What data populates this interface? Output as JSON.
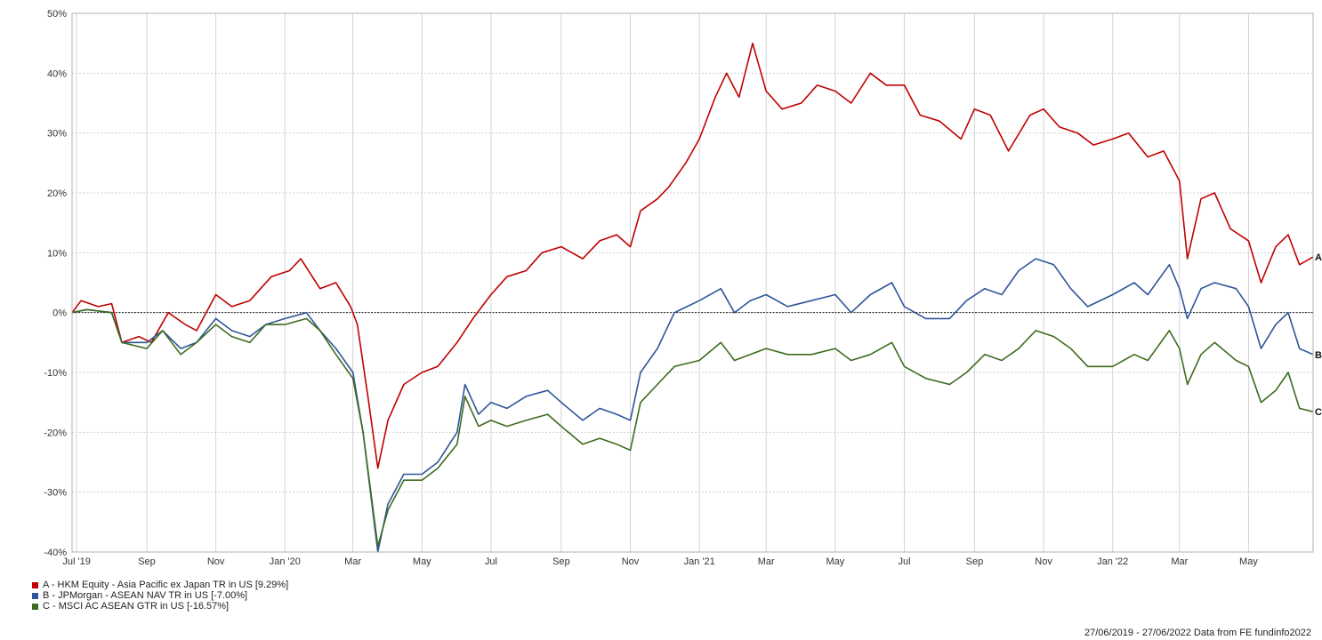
{
  "chart_data": {
    "type": "line",
    "title": "",
    "xlabel": "",
    "ylabel": "",
    "ylim": [
      -40,
      50
    ],
    "y_ticks": [
      -40,
      -30,
      -20,
      -10,
      0,
      10,
      20,
      30,
      40,
      50
    ],
    "y_tick_labels": [
      "-40%",
      "-30%",
      "-20%",
      "-10%",
      "0%",
      "10%",
      "20%",
      "30%",
      "40%",
      "50%"
    ],
    "x_range": [
      "2019-06-27",
      "2022-06-27"
    ],
    "x_ticks": [
      {
        "date": "2019-07-01",
        "label": "Jul '19"
      },
      {
        "date": "2019-09-01",
        "label": "Sep"
      },
      {
        "date": "2019-11-01",
        "label": "Nov"
      },
      {
        "date": "2020-01-01",
        "label": "Jan '20"
      },
      {
        "date": "2020-03-01",
        "label": "Mar"
      },
      {
        "date": "2020-05-01",
        "label": "May"
      },
      {
        "date": "2020-07-01",
        "label": "Jul"
      },
      {
        "date": "2020-09-01",
        "label": "Sep"
      },
      {
        "date": "2020-11-01",
        "label": "Nov"
      },
      {
        "date": "2021-01-01",
        "label": "Jan '21"
      },
      {
        "date": "2021-03-01",
        "label": "Mar"
      },
      {
        "date": "2021-05-01",
        "label": "May"
      },
      {
        "date": "2021-07-01",
        "label": "Jul"
      },
      {
        "date": "2021-09-01",
        "label": "Sep"
      },
      {
        "date": "2021-11-01",
        "label": "Nov"
      },
      {
        "date": "2022-01-01",
        "label": "Jan '22"
      },
      {
        "date": "2022-03-01",
        "label": "Mar"
      },
      {
        "date": "2022-05-01",
        "label": "May"
      }
    ],
    "grid": true,
    "zero_line": true,
    "legend_position": "bottom-left",
    "series": [
      {
        "name": "A - HKM Equity - Asia Pacific ex Japan TR in US [9.29%]",
        "end_label": "A",
        "color": "#c00000",
        "points": [
          [
            "2019-06-27",
            0
          ],
          [
            "2019-07-05",
            2
          ],
          [
            "2019-07-20",
            1
          ],
          [
            "2019-08-01",
            1.5
          ],
          [
            "2019-08-10",
            -5
          ],
          [
            "2019-08-25",
            -4
          ],
          [
            "2019-09-05",
            -5
          ],
          [
            "2019-09-20",
            0
          ],
          [
            "2019-10-05",
            -2
          ],
          [
            "2019-10-15",
            -3
          ],
          [
            "2019-11-01",
            3
          ],
          [
            "2019-11-15",
            1
          ],
          [
            "2019-12-01",
            2
          ],
          [
            "2019-12-20",
            6
          ],
          [
            "2020-01-05",
            7
          ],
          [
            "2020-01-15",
            9
          ],
          [
            "2020-02-01",
            4
          ],
          [
            "2020-02-15",
            5
          ],
          [
            "2020-02-28",
            1
          ],
          [
            "2020-03-05",
            -2
          ],
          [
            "2020-03-15",
            -15
          ],
          [
            "2020-03-23",
            -26
          ],
          [
            "2020-04-01",
            -18
          ],
          [
            "2020-04-15",
            -12
          ],
          [
            "2020-05-01",
            -10
          ],
          [
            "2020-05-15",
            -9
          ],
          [
            "2020-06-01",
            -5
          ],
          [
            "2020-06-15",
            -1
          ],
          [
            "2020-07-01",
            3
          ],
          [
            "2020-07-15",
            6
          ],
          [
            "2020-08-01",
            7
          ],
          [
            "2020-08-15",
            10
          ],
          [
            "2020-09-01",
            11
          ],
          [
            "2020-09-20",
            9
          ],
          [
            "2020-10-05",
            12
          ],
          [
            "2020-10-20",
            13
          ],
          [
            "2020-11-01",
            11
          ],
          [
            "2020-11-10",
            17
          ],
          [
            "2020-11-25",
            19
          ],
          [
            "2020-12-05",
            21
          ],
          [
            "2020-12-20",
            25
          ],
          [
            "2021-01-01",
            29
          ],
          [
            "2021-01-15",
            36
          ],
          [
            "2021-01-25",
            40
          ],
          [
            "2021-02-05",
            36
          ],
          [
            "2021-02-17",
            45
          ],
          [
            "2021-03-01",
            37
          ],
          [
            "2021-03-15",
            34
          ],
          [
            "2021-04-01",
            35
          ],
          [
            "2021-04-15",
            38
          ],
          [
            "2021-05-01",
            37
          ],
          [
            "2021-05-15",
            35
          ],
          [
            "2021-06-01",
            40
          ],
          [
            "2021-06-15",
            38
          ],
          [
            "2021-07-01",
            38
          ],
          [
            "2021-07-15",
            33
          ],
          [
            "2021-08-01",
            32
          ],
          [
            "2021-08-20",
            29
          ],
          [
            "2021-09-01",
            34
          ],
          [
            "2021-09-15",
            33
          ],
          [
            "2021-10-01",
            27
          ],
          [
            "2021-10-20",
            33
          ],
          [
            "2021-11-01",
            34
          ],
          [
            "2021-11-15",
            31
          ],
          [
            "2021-12-01",
            30
          ],
          [
            "2021-12-15",
            28
          ],
          [
            "2022-01-01",
            29
          ],
          [
            "2022-01-15",
            30
          ],
          [
            "2022-02-01",
            26
          ],
          [
            "2022-02-15",
            27
          ],
          [
            "2022-03-01",
            22
          ],
          [
            "2022-03-08",
            9
          ],
          [
            "2022-03-20",
            19
          ],
          [
            "2022-04-01",
            20
          ],
          [
            "2022-04-15",
            14
          ],
          [
            "2022-05-01",
            12
          ],
          [
            "2022-05-12",
            5
          ],
          [
            "2022-05-25",
            11
          ],
          [
            "2022-06-05",
            13
          ],
          [
            "2022-06-15",
            8
          ],
          [
            "2022-06-27",
            9.29
          ]
        ]
      },
      {
        "name": "B - JPMorgan - ASEAN NAV TR in US [-7.00%]",
        "end_label": "B",
        "color": "#2e5598",
        "points": [
          [
            "2019-06-27",
            0
          ],
          [
            "2019-07-10",
            0.5
          ],
          [
            "2019-08-01",
            0
          ],
          [
            "2019-08-10",
            -5
          ],
          [
            "2019-09-01",
            -5
          ],
          [
            "2019-09-15",
            -3
          ],
          [
            "2019-10-01",
            -6
          ],
          [
            "2019-10-15",
            -5
          ],
          [
            "2019-11-01",
            -1
          ],
          [
            "2019-11-15",
            -3
          ],
          [
            "2019-12-01",
            -4
          ],
          [
            "2019-12-15",
            -2
          ],
          [
            "2020-01-01",
            -1
          ],
          [
            "2020-01-20",
            0
          ],
          [
            "2020-02-01",
            -3
          ],
          [
            "2020-02-15",
            -6
          ],
          [
            "2020-03-01",
            -10
          ],
          [
            "2020-03-10",
            -20
          ],
          [
            "2020-03-23",
            -40
          ],
          [
            "2020-04-01",
            -32
          ],
          [
            "2020-04-15",
            -27
          ],
          [
            "2020-05-01",
            -27
          ],
          [
            "2020-05-15",
            -25
          ],
          [
            "2020-06-01",
            -20
          ],
          [
            "2020-06-08",
            -12
          ],
          [
            "2020-06-20",
            -17
          ],
          [
            "2020-07-01",
            -15
          ],
          [
            "2020-07-15",
            -16
          ],
          [
            "2020-08-01",
            -14
          ],
          [
            "2020-08-20",
            -13
          ],
          [
            "2020-09-01",
            -15
          ],
          [
            "2020-09-20",
            -18
          ],
          [
            "2020-10-05",
            -16
          ],
          [
            "2020-10-20",
            -17
          ],
          [
            "2020-11-01",
            -18
          ],
          [
            "2020-11-10",
            -10
          ],
          [
            "2020-11-25",
            -6
          ],
          [
            "2020-12-10",
            0
          ],
          [
            "2021-01-01",
            2
          ],
          [
            "2021-01-20",
            4
          ],
          [
            "2021-02-01",
            0
          ],
          [
            "2021-02-15",
            2
          ],
          [
            "2021-03-01",
            3
          ],
          [
            "2021-03-20",
            1
          ],
          [
            "2021-04-10",
            2
          ],
          [
            "2021-05-01",
            3
          ],
          [
            "2021-05-15",
            0
          ],
          [
            "2021-06-01",
            3
          ],
          [
            "2021-06-20",
            5
          ],
          [
            "2021-07-01",
            1
          ],
          [
            "2021-07-20",
            -1
          ],
          [
            "2021-08-10",
            -1
          ],
          [
            "2021-08-25",
            2
          ],
          [
            "2021-09-10",
            4
          ],
          [
            "2021-09-25",
            3
          ],
          [
            "2021-10-10",
            7
          ],
          [
            "2021-10-25",
            9
          ],
          [
            "2021-11-10",
            8
          ],
          [
            "2021-11-25",
            4
          ],
          [
            "2021-12-10",
            1
          ],
          [
            "2022-01-01",
            3
          ],
          [
            "2022-01-20",
            5
          ],
          [
            "2022-02-01",
            3
          ],
          [
            "2022-02-20",
            8
          ],
          [
            "2022-03-01",
            4
          ],
          [
            "2022-03-08",
            -1
          ],
          [
            "2022-03-20",
            4
          ],
          [
            "2022-04-01",
            5
          ],
          [
            "2022-04-20",
            4
          ],
          [
            "2022-05-01",
            1
          ],
          [
            "2022-05-12",
            -6
          ],
          [
            "2022-05-25",
            -2
          ],
          [
            "2022-06-05",
            0
          ],
          [
            "2022-06-15",
            -6
          ],
          [
            "2022-06-27",
            -7
          ]
        ]
      },
      {
        "name": "C - MSCI AC ASEAN GTR in US [-16.57%]",
        "end_label": "C",
        "color": "#3d6b1e",
        "points": [
          [
            "2019-06-27",
            0
          ],
          [
            "2019-07-10",
            0.5
          ],
          [
            "2019-08-01",
            0
          ],
          [
            "2019-08-10",
            -5
          ],
          [
            "2019-09-01",
            -6
          ],
          [
            "2019-09-15",
            -3
          ],
          [
            "2019-10-01",
            -7
          ],
          [
            "2019-10-15",
            -5
          ],
          [
            "2019-11-01",
            -2
          ],
          [
            "2019-11-15",
            -4
          ],
          [
            "2019-12-01",
            -5
          ],
          [
            "2019-12-15",
            -2
          ],
          [
            "2020-01-01",
            -2
          ],
          [
            "2020-01-20",
            -1
          ],
          [
            "2020-02-01",
            -3
          ],
          [
            "2020-02-15",
            -7
          ],
          [
            "2020-03-01",
            -11
          ],
          [
            "2020-03-10",
            -20
          ],
          [
            "2020-03-23",
            -39
          ],
          [
            "2020-04-01",
            -33
          ],
          [
            "2020-04-15",
            -28
          ],
          [
            "2020-05-01",
            -28
          ],
          [
            "2020-05-15",
            -26
          ],
          [
            "2020-06-01",
            -22
          ],
          [
            "2020-06-08",
            -14
          ],
          [
            "2020-06-20",
            -19
          ],
          [
            "2020-07-01",
            -18
          ],
          [
            "2020-07-15",
            -19
          ],
          [
            "2020-08-01",
            -18
          ],
          [
            "2020-08-20",
            -17
          ],
          [
            "2020-09-01",
            -19
          ],
          [
            "2020-09-20",
            -22
          ],
          [
            "2020-10-05",
            -21
          ],
          [
            "2020-10-20",
            -22
          ],
          [
            "2020-11-01",
            -23
          ],
          [
            "2020-11-10",
            -15
          ],
          [
            "2020-11-25",
            -12
          ],
          [
            "2020-12-10",
            -9
          ],
          [
            "2021-01-01",
            -8
          ],
          [
            "2021-01-20",
            -5
          ],
          [
            "2021-02-01",
            -8
          ],
          [
            "2021-02-15",
            -7
          ],
          [
            "2021-03-01",
            -6
          ],
          [
            "2021-03-20",
            -7
          ],
          [
            "2021-04-10",
            -7
          ],
          [
            "2021-05-01",
            -6
          ],
          [
            "2021-05-15",
            -8
          ],
          [
            "2021-06-01",
            -7
          ],
          [
            "2021-06-20",
            -5
          ],
          [
            "2021-07-01",
            -9
          ],
          [
            "2021-07-20",
            -11
          ],
          [
            "2021-08-10",
            -12
          ],
          [
            "2021-08-25",
            -10
          ],
          [
            "2021-09-10",
            -7
          ],
          [
            "2021-09-25",
            -8
          ],
          [
            "2021-10-10",
            -6
          ],
          [
            "2021-10-25",
            -3
          ],
          [
            "2021-11-10",
            -4
          ],
          [
            "2021-11-25",
            -6
          ],
          [
            "2021-12-10",
            -9
          ],
          [
            "2022-01-01",
            -9
          ],
          [
            "2022-01-20",
            -7
          ],
          [
            "2022-02-01",
            -8
          ],
          [
            "2022-02-20",
            -3
          ],
          [
            "2022-03-01",
            -6
          ],
          [
            "2022-03-08",
            -12
          ],
          [
            "2022-03-20",
            -7
          ],
          [
            "2022-04-01",
            -5
          ],
          [
            "2022-04-20",
            -8
          ],
          [
            "2022-05-01",
            -9
          ],
          [
            "2022-05-12",
            -15
          ],
          [
            "2022-05-25",
            -13
          ],
          [
            "2022-06-05",
            -10
          ],
          [
            "2022-06-15",
            -16
          ],
          [
            "2022-06-27",
            -16.57
          ]
        ]
      }
    ]
  },
  "footer": {
    "text": "27/06/2019 - 27/06/2022 Data from FE fundinfo2022"
  }
}
